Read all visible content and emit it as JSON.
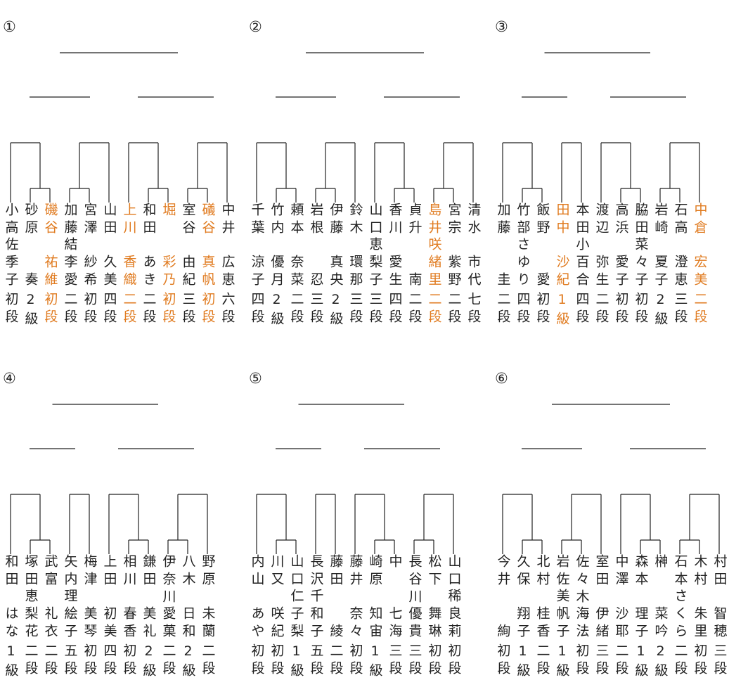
{
  "brackets": [
    {
      "label": "①",
      "players": [
        {
          "surname": "小高",
          "given": "佐季子",
          "rank": "初段"
        },
        {
          "surname": "砂原",
          "given": "奏",
          "rank": "2級"
        },
        {
          "surname": "磯谷",
          "given": "祐維",
          "rank": "初段",
          "highlight": true
        },
        {
          "surname": "加藤",
          "given": "結李愛",
          "rank": "二段"
        },
        {
          "surname": "宮澤",
          "given": "紗希",
          "rank": "初段"
        },
        {
          "surname": "山田",
          "given": "久美",
          "rank": "四段"
        },
        {
          "surname": "上川",
          "given": "香織",
          "rank": "二段",
          "highlight": true
        },
        {
          "surname": "和田",
          "given": "あき",
          "rank": "二段"
        },
        {
          "surname": "堀",
          "given": "彩乃",
          "rank": "初段",
          "highlight": true
        },
        {
          "surname": "室谷",
          "given": "由紀",
          "rank": "三段"
        },
        {
          "surname": "礒谷",
          "given": "真帆",
          "rank": "初段",
          "highlight": true
        },
        {
          "surname": "中井",
          "given": "広恵",
          "rank": "六段"
        }
      ]
    },
    {
      "label": "②",
      "players": [
        {
          "surname": "千葉",
          "given": "涼子",
          "rank": "四段"
        },
        {
          "surname": "竹内",
          "given": "優月",
          "rank": "2級"
        },
        {
          "surname": "頼本",
          "given": "奈菜",
          "rank": "二段"
        },
        {
          "surname": "岩根",
          "given": "忍",
          "rank": "三段"
        },
        {
          "surname": "伊藤",
          "given": "真央",
          "rank": "2級"
        },
        {
          "surname": "鈴木",
          "given": "環那",
          "rank": "三段"
        },
        {
          "surname": "山口",
          "given": "恵梨子",
          "rank": "三段"
        },
        {
          "surname": "香川",
          "given": "愛生",
          "rank": "四段"
        },
        {
          "surname": "貞升",
          "given": "南",
          "rank": "二段"
        },
        {
          "surname": "島井",
          "given": "咲緒里",
          "rank": "二段",
          "highlight": true
        },
        {
          "surname": "宮宗",
          "given": "紫野",
          "rank": "二段"
        },
        {
          "surname": "清水",
          "given": "市代",
          "rank": "七段"
        }
      ]
    },
    {
      "label": "③",
      "players": [
        {
          "surname": "加藤",
          "given": "圭",
          "rank": "二段"
        },
        {
          "surname": "竹部",
          "given": "さゆり",
          "rank": "四段"
        },
        {
          "surname": "飯野",
          "given": "愛",
          "rank": "初段"
        },
        {
          "surname": "田中",
          "given": "沙紀",
          "rank": "1級",
          "highlight": true
        },
        {
          "surname": "本田",
          "given": "小百合",
          "rank": "四段"
        },
        {
          "surname": "渡辺",
          "given": "弥生",
          "rank": "二段"
        },
        {
          "surname": "高浜",
          "given": "愛子",
          "rank": "初段"
        },
        {
          "surname": "脇田",
          "given": "菜々子",
          "rank": "初段"
        },
        {
          "surname": "岩崎",
          "given": "夏子",
          "rank": "2級"
        },
        {
          "surname": "石高",
          "given": "澄恵",
          "rank": "三段"
        },
        {
          "surname": "中倉",
          "given": "宏美",
          "rank": "二段",
          "highlight": true
        }
      ]
    },
    {
      "label": "④",
      "players": [
        {
          "surname": "和田",
          "given": "はな",
          "rank": "1級"
        },
        {
          "surname": "塚田",
          "given": "恵梨花",
          "rank": "二段"
        },
        {
          "surname": "武富",
          "given": "礼衣",
          "rank": "二段"
        },
        {
          "surname": "矢内",
          "given": "理絵子",
          "rank": "五段"
        },
        {
          "surname": "梅津",
          "given": "美琴",
          "rank": "初段"
        },
        {
          "surname": "上田",
          "given": "初美",
          "rank": "四段"
        },
        {
          "surname": "相川",
          "given": "春香",
          "rank": "初段"
        },
        {
          "surname": "鎌田",
          "given": "美礼",
          "rank": "2級"
        },
        {
          "surname": "伊奈川",
          "given": "愛菓",
          "rank": "二段"
        },
        {
          "surname": "八木",
          "given": "日和",
          "rank": "2級"
        },
        {
          "surname": "野原",
          "given": "未蘭",
          "rank": "二段"
        }
      ]
    },
    {
      "label": "⑤",
      "players": [
        {
          "surname": "内山",
          "given": "あや",
          "rank": "初段"
        },
        {
          "surname": "川又",
          "given": "咲紀",
          "rank": "初段"
        },
        {
          "surname": "山口",
          "given": "仁子梨",
          "rank": "1級"
        },
        {
          "surname": "長沢",
          "given": "千和子",
          "rank": "五段"
        },
        {
          "surname": "藤田",
          "given": "綾",
          "rank": "二段"
        },
        {
          "surname": "藤井",
          "given": "奈々",
          "rank": "初段"
        },
        {
          "surname": "崎原",
          "given": "知宙",
          "rank": "1級"
        },
        {
          "surname": "中",
          "given": "七海",
          "rank": "三段"
        },
        {
          "surname": "長谷川",
          "given": "優貴",
          "rank": "三段"
        },
        {
          "surname": "松下",
          "given": "舞琳",
          "rank": "初段"
        },
        {
          "surname": "山口",
          "given": "稀良莉",
          "rank": "初段"
        }
      ]
    },
    {
      "label": "⑥",
      "players": [
        {
          "surname": "今井",
          "given": "絢",
          "rank": "初段"
        },
        {
          "surname": "久保",
          "given": "翔子",
          "rank": "1級"
        },
        {
          "surname": "北村",
          "given": "桂香",
          "rank": "二段"
        },
        {
          "surname": "岩佐",
          "given": "美帆子",
          "rank": "1級"
        },
        {
          "surname": "佐々木",
          "given": "海法",
          "rank": "初段"
        },
        {
          "surname": "室田",
          "given": "伊緒",
          "rank": "三段"
        },
        {
          "surname": "中澤",
          "given": "沙耶",
          "rank": "二段"
        },
        {
          "surname": "森本",
          "given": "理子",
          "rank": "1級"
        },
        {
          "surname": "榊",
          "given": "菜吟",
          "rank": "2級"
        },
        {
          "surname": "石本",
          "given": "さくら",
          "rank": "二段"
        },
        {
          "surname": "木村",
          "given": "朱里",
          "rank": "初段"
        },
        {
          "surname": "村田",
          "given": "智穂",
          "rank": "三段"
        }
      ]
    }
  ]
}
